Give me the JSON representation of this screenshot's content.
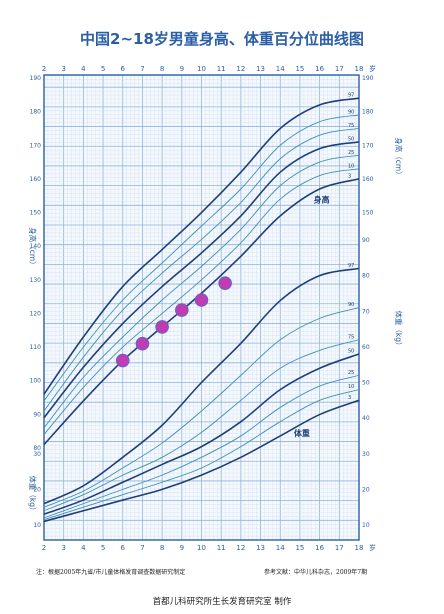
{
  "colors": {
    "frame": "#2a5ea8",
    "grid_minor": "#cfe0f2",
    "grid_major": "#8fb3dc",
    "curve_dark": "#1f3f7a",
    "curve_light": "#3e8fb8",
    "point_fill": "#c23bb0",
    "point_stroke": "#6a5fc8",
    "title": "#2a5ea8"
  },
  "chart_data": {
    "type": "line",
    "title": "中国2~18岁男童身高、体重百分位曲线图",
    "x_axis": {
      "unit_label": "岁",
      "range": [
        2,
        18
      ],
      "ticks": [
        2,
        3,
        4,
        5,
        6,
        7,
        8,
        9,
        10,
        11,
        12,
        13,
        14,
        15,
        16,
        17,
        18
      ],
      "tick_labels": [
        "2",
        "3",
        "4",
        "5",
        "6",
        "7",
        "8",
        "9",
        "10",
        "11",
        "12",
        "13",
        "14",
        "15",
        "16",
        "17",
        "18"
      ]
    },
    "height_axis": {
      "label": "身高（cm）",
      "range": [
        80,
        190
      ],
      "ticks": [
        80,
        90,
        100,
        110,
        120,
        130,
        140,
        150,
        160,
        170,
        180,
        190
      ],
      "tick_labels": [
        "80",
        "90",
        "100",
        "110",
        "120",
        "130",
        "140",
        "150",
        "160",
        "170",
        "180",
        "190"
      ]
    },
    "weight_axis": {
      "label": "体重（kg）",
      "range": [
        0,
        90
      ],
      "ticks": [
        10,
        20,
        30,
        40,
        50,
        60,
        70,
        80,
        90
      ],
      "tick_labels": [
        "10",
        "20",
        "30",
        "40",
        "50",
        "60",
        "70",
        "80",
        "90"
      ]
    },
    "percentile_labels": [
      "97",
      "90",
      "75",
      "50",
      "25",
      "10",
      "3"
    ],
    "series_labels": {
      "height": "身高",
      "weight": "体重"
    },
    "height_series": [
      {
        "name": "97",
        "x": [
          2,
          4,
          6,
          8,
          10,
          12,
          14,
          16,
          18
        ],
        "y": [
          96,
          113,
          128,
          139,
          150,
          162,
          175,
          182,
          184
        ]
      },
      {
        "name": "90",
        "x": [
          2,
          4,
          6,
          8,
          10,
          12,
          14,
          16,
          18
        ],
        "y": [
          94,
          110,
          124,
          135,
          146,
          157,
          170,
          177,
          179
        ]
      },
      {
        "name": "75",
        "x": [
          2,
          4,
          6,
          8,
          10,
          12,
          14,
          16,
          18
        ],
        "y": [
          91,
          107,
          121,
          132,
          142,
          153,
          166,
          173,
          175
        ]
      },
      {
        "name": "50",
        "x": [
          2,
          4,
          6,
          8,
          10,
          12,
          14,
          16,
          18
        ],
        "y": [
          89,
          104,
          117,
          128,
          138,
          149,
          162,
          169,
          171
        ]
      },
      {
        "name": "25",
        "x": [
          2,
          4,
          6,
          8,
          10,
          12,
          14,
          16,
          18
        ],
        "y": [
          86,
          101,
          113,
          124,
          134,
          145,
          158,
          165,
          167
        ]
      },
      {
        "name": "10",
        "x": [
          2,
          4,
          6,
          8,
          10,
          12,
          14,
          16,
          18
        ],
        "y": [
          84,
          98,
          110,
          120,
          130,
          141,
          154,
          161,
          163
        ]
      },
      {
        "name": "3",
        "x": [
          2,
          4,
          6,
          8,
          10,
          12,
          14,
          16,
          18
        ],
        "y": [
          81,
          94,
          106,
          116,
          126,
          137,
          149,
          157,
          160
        ]
      }
    ],
    "weight_series": [
      {
        "name": "97",
        "x": [
          2,
          4,
          6,
          8,
          10,
          12,
          14,
          16,
          18
        ],
        "y": [
          16,
          21,
          29,
          38,
          50,
          61,
          73,
          80,
          82
        ]
      },
      {
        "name": "90",
        "x": [
          2,
          4,
          6,
          8,
          10,
          12,
          14,
          16,
          18
        ],
        "y": [
          15,
          19.5,
          26,
          33,
          42,
          52,
          62,
          68,
          71
        ]
      },
      {
        "name": "75",
        "x": [
          2,
          4,
          6,
          8,
          10,
          12,
          14,
          16,
          18
        ],
        "y": [
          14,
          18.5,
          24,
          29,
          36,
          45,
          54,
          59,
          62
        ]
      },
      {
        "name": "50",
        "x": [
          2,
          4,
          6,
          8,
          10,
          12,
          14,
          16,
          18
        ],
        "y": [
          13,
          17,
          22,
          27,
          32,
          39,
          48,
          54,
          58
        ]
      },
      {
        "name": "25",
        "x": [
          2,
          4,
          6,
          8,
          10,
          12,
          14,
          16,
          18
        ],
        "y": [
          12,
          16,
          20,
          24,
          29,
          35,
          43,
          49,
          52
        ]
      },
      {
        "name": "10",
        "x": [
          2,
          4,
          6,
          8,
          10,
          12,
          14,
          16,
          18
        ],
        "y": [
          11.5,
          15,
          18.5,
          22,
          26,
          32,
          39,
          45,
          48
        ]
      },
      {
        "name": "3",
        "x": [
          2,
          4,
          6,
          8,
          10,
          12,
          14,
          16,
          18
        ],
        "y": [
          11,
          14,
          17,
          20,
          24,
          29,
          35,
          41,
          45
        ]
      }
    ],
    "points": {
      "axis": "height",
      "x": [
        6,
        7,
        8,
        9,
        10,
        11.2
      ],
      "y": [
        106,
        111,
        116,
        121,
        124,
        129
      ]
    }
  },
  "footer": {
    "note": "注：根据2005年九省/市儿童体格发育调查数据研究制定",
    "reference": "参考文献：中华儿科杂志，2009年7期",
    "credit": "首都儿科研究所生长发育研究室  制作"
  }
}
